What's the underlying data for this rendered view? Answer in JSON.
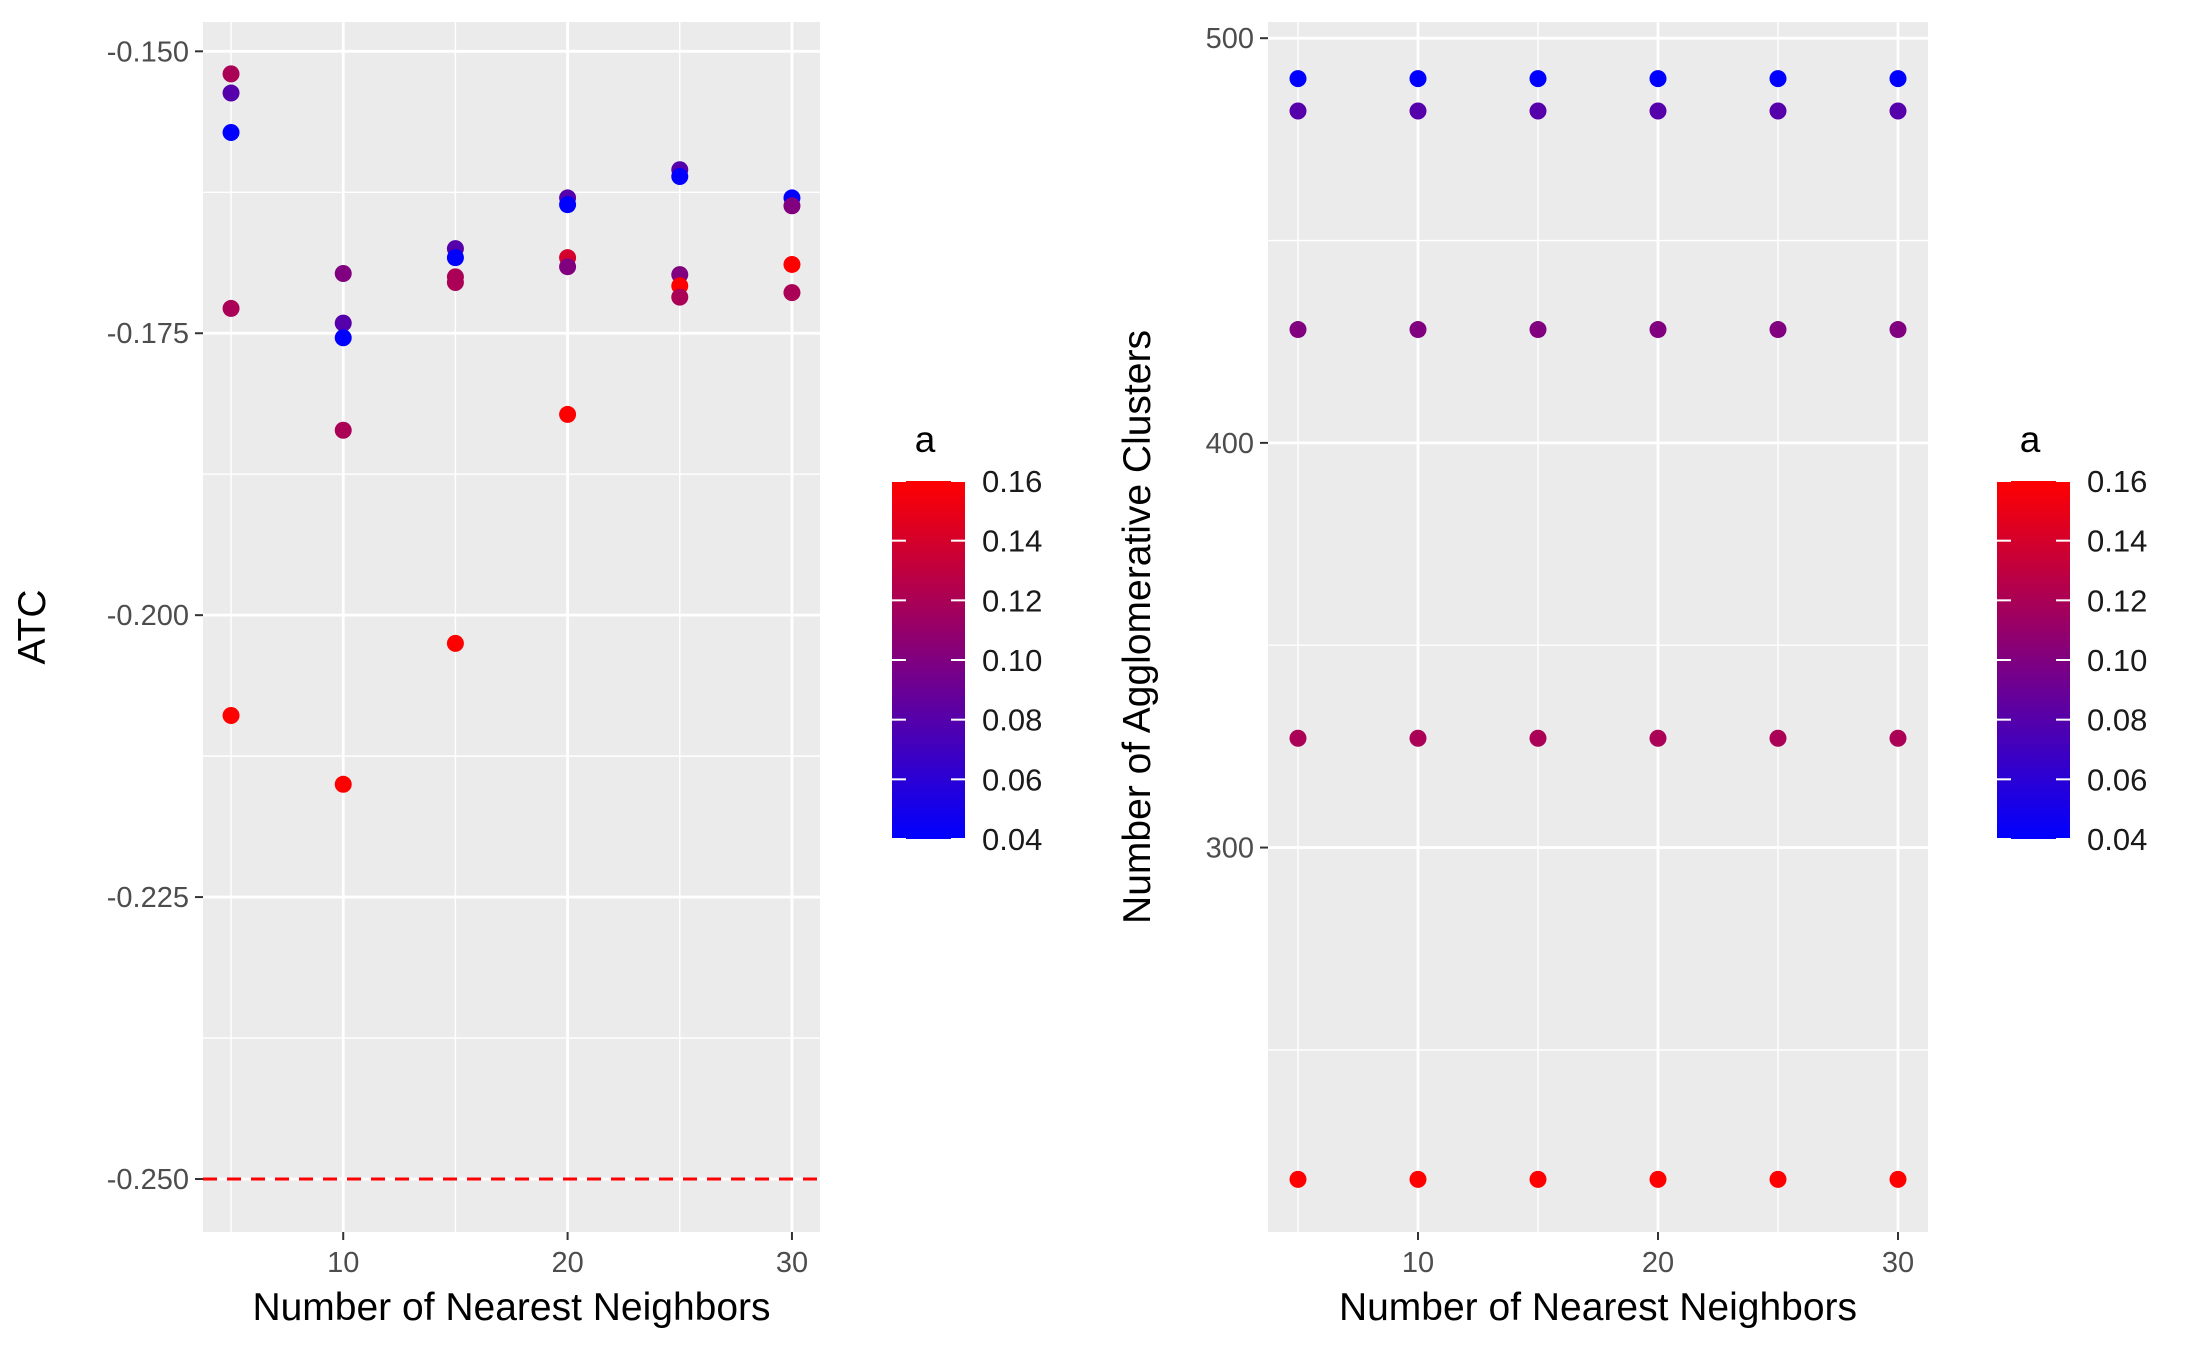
{
  "chart_data": [
    {
      "type": "scatter",
      "xlabel": "Number of Nearest Neighbors",
      "ylabel": "ATC",
      "x_ticks": [
        10,
        20,
        30
      ],
      "y_ticks": [
        -0.25,
        -0.225,
        -0.2,
        -0.175,
        -0.15
      ],
      "y_tick_labels": [
        "-0.250",
        "-0.225",
        "-0.200",
        "-0.175",
        "-0.150"
      ],
      "xlim": [
        3.75,
        31.25
      ],
      "ylim": [
        -0.2547,
        -0.1474
      ],
      "grid": true,
      "reference_line": {
        "y": -0.25,
        "style": "dashed",
        "color": "#ff0000"
      },
      "legend": {
        "title": "a",
        "placement": "right",
        "type": "colorbar"
      },
      "points": [
        {
          "x": 5,
          "y": -0.152,
          "a": 0.12
        },
        {
          "x": 5,
          "y": -0.1537,
          "a": 0.08
        },
        {
          "x": 5,
          "y": -0.1572,
          "a": 0.04
        },
        {
          "x": 5,
          "y": -0.1728,
          "a": 0.12
        },
        {
          "x": 5,
          "y": -0.2089,
          "a": 0.16
        },
        {
          "x": 10,
          "y": -0.1697,
          "a": 0.1
        },
        {
          "x": 10,
          "y": -0.1741,
          "a": 0.08
        },
        {
          "x": 10,
          "y": -0.1754,
          "a": 0.04
        },
        {
          "x": 10,
          "y": -0.1836,
          "a": 0.12
        },
        {
          "x": 10,
          "y": -0.215,
          "a": 0.16
        },
        {
          "x": 15,
          "y": -0.1675,
          "a": 0.08
        },
        {
          "x": 15,
          "y": -0.1683,
          "a": 0.04
        },
        {
          "x": 15,
          "y": -0.17,
          "a": 0.12
        },
        {
          "x": 15,
          "y": -0.1705,
          "a": 0.12
        },
        {
          "x": 15,
          "y": -0.2025,
          "a": 0.16
        },
        {
          "x": 20,
          "y": -0.163,
          "a": 0.08
        },
        {
          "x": 20,
          "y": -0.1636,
          "a": 0.04
        },
        {
          "x": 20,
          "y": -0.1683,
          "a": 0.14
        },
        {
          "x": 20,
          "y": -0.1691,
          "a": 0.1
        },
        {
          "x": 20,
          "y": -0.1822,
          "a": 0.16
        },
        {
          "x": 25,
          "y": -0.1605,
          "a": 0.08
        },
        {
          "x": 25,
          "y": -0.1611,
          "a": 0.04
        },
        {
          "x": 25,
          "y": -0.1698,
          "a": 0.1
        },
        {
          "x": 25,
          "y": -0.1708,
          "a": 0.16
        },
        {
          "x": 25,
          "y": -0.1718,
          "a": 0.12
        },
        {
          "x": 30,
          "y": -0.163,
          "a": 0.04
        },
        {
          "x": 30,
          "y": -0.1637,
          "a": 0.1
        },
        {
          "x": 30,
          "y": -0.1689,
          "a": 0.16
        },
        {
          "x": 30,
          "y": -0.1714,
          "a": 0.12
        }
      ]
    },
    {
      "type": "scatter",
      "xlabel": "Number of Nearest Neighbors",
      "ylabel": "Number of Agglomerative Clusters",
      "x_ticks": [
        10,
        20,
        30
      ],
      "y_ticks": [
        300,
        400,
        500
      ],
      "y_tick_labels": [
        "300",
        "400",
        "500"
      ],
      "xlim": [
        3.75,
        31.25
      ],
      "ylim": [
        205,
        504
      ],
      "grid": true,
      "legend": {
        "title": "a",
        "placement": "right",
        "type": "colorbar"
      },
      "series": [
        {
          "a": 0.04,
          "x": [
            5,
            10,
            15,
            20,
            25,
            30
          ],
          "y": [
            490,
            490,
            490,
            490,
            490,
            490
          ]
        },
        {
          "a": 0.08,
          "x": [
            5,
            10,
            15,
            20,
            25,
            30
          ],
          "y": [
            482,
            482,
            482,
            482,
            482,
            482
          ]
        },
        {
          "a": 0.1,
          "x": [
            5,
            10,
            15,
            20,
            25,
            30
          ],
          "y": [
            428,
            428,
            428,
            428,
            428,
            428
          ]
        },
        {
          "a": 0.12,
          "x": [
            5,
            10,
            15,
            20,
            25,
            30
          ],
          "y": [
            327,
            327,
            327,
            327,
            327,
            327
          ]
        },
        {
          "a": 0.16,
          "x": [
            5,
            10,
            15,
            20,
            25,
            30
          ],
          "y": [
            218,
            218,
            218,
            218,
            218,
            218
          ]
        }
      ]
    }
  ],
  "colorbar": {
    "title": "a",
    "min": 0.04,
    "max": 0.16,
    "low_color": "#0000ff",
    "high_color": "#ff0000",
    "ticks": [
      0.04,
      0.06,
      0.08,
      0.1,
      0.12,
      0.14,
      0.16
    ],
    "tick_labels": [
      "0.04",
      "0.06",
      "0.08",
      "0.10",
      "0.12",
      "0.14",
      "0.16"
    ]
  },
  "colors": {
    "panel_background": "#ebebeb",
    "grid": "#ffffff",
    "reference_line": "#ff0000"
  }
}
